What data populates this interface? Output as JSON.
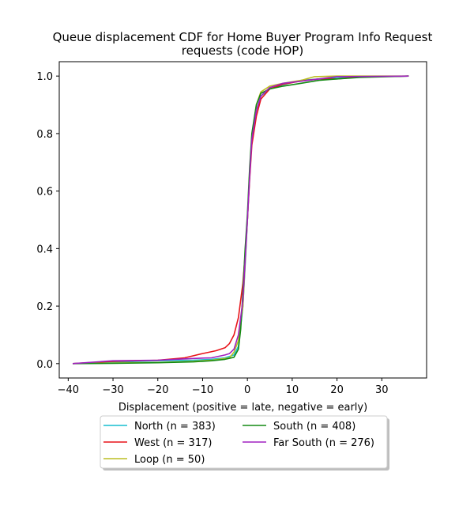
{
  "chart_data": {
    "type": "line",
    "title_lines": [
      "Queue displacement CDF for Home Buyer Program Info Request",
      "requests (code HOP)"
    ],
    "xlabel": "Displacement (positive = late, negative = early)",
    "ylabel": "",
    "xlim": [
      -42,
      40
    ],
    "ylim": [
      -0.05,
      1.05
    ],
    "xticks": [
      -40,
      -30,
      -20,
      -10,
      0,
      10,
      20,
      30
    ],
    "xtick_labels": [
      "−40",
      "−30",
      "−20",
      "−10",
      "0",
      "10",
      "20",
      "30"
    ],
    "yticks": [
      0.0,
      0.2,
      0.4,
      0.6,
      0.8,
      1.0
    ],
    "ytick_labels": [
      "0.0",
      "0.2",
      "0.4",
      "0.6",
      "0.8",
      "1.0"
    ],
    "grid": false,
    "legend": {
      "placement": "below plot, center, 2 columns, shadowed",
      "entries": [
        "North (n = 383)",
        "West (n = 317)",
        "Loop (n = 50)",
        "South (n = 408)",
        "Far South (n = 276)"
      ]
    },
    "series": [
      {
        "name": "North (n = 383)",
        "color": "#17becf",
        "points": [
          [
            -39,
            0.0
          ],
          [
            -30,
            0.005
          ],
          [
            -20,
            0.01
          ],
          [
            -12,
            0.012
          ],
          [
            -8,
            0.015
          ],
          [
            -5,
            0.02
          ],
          [
            -3,
            0.03
          ],
          [
            -2,
            0.06
          ],
          [
            -1,
            0.2
          ],
          [
            -0.5,
            0.34
          ],
          [
            0,
            0.5
          ],
          [
            0.5,
            0.66
          ],
          [
            1,
            0.78
          ],
          [
            2,
            0.88
          ],
          [
            3,
            0.93
          ],
          [
            5,
            0.955
          ],
          [
            8,
            0.97
          ],
          [
            12,
            0.985
          ],
          [
            16,
            0.99
          ],
          [
            20,
            0.995
          ],
          [
            25,
            0.998
          ],
          [
            36,
            1.0
          ]
        ]
      },
      {
        "name": "West (n = 317)",
        "color": "#e8141a",
        "points": [
          [
            -39,
            0.0
          ],
          [
            -30,
            0.008
          ],
          [
            -20,
            0.012
          ],
          [
            -14,
            0.02
          ],
          [
            -10,
            0.035
          ],
          [
            -7,
            0.045
          ],
          [
            -5,
            0.055
          ],
          [
            -4,
            0.07
          ],
          [
            -3,
            0.1
          ],
          [
            -2,
            0.16
          ],
          [
            -1,
            0.28
          ],
          [
            -0.5,
            0.38
          ],
          [
            0,
            0.5
          ],
          [
            0.5,
            0.64
          ],
          [
            1,
            0.76
          ],
          [
            2,
            0.86
          ],
          [
            3,
            0.92
          ],
          [
            5,
            0.955
          ],
          [
            8,
            0.972
          ],
          [
            12,
            0.983
          ],
          [
            16,
            0.99
          ],
          [
            20,
            0.99
          ],
          [
            25,
            0.997
          ],
          [
            36,
            1.0
          ]
        ]
      },
      {
        "name": "Loop (n = 50)",
        "color": "#bcbd22",
        "points": [
          [
            -39,
            0.0
          ],
          [
            -30,
            0.002
          ],
          [
            -20,
            0.004
          ],
          [
            -12,
            0.008
          ],
          [
            -8,
            0.012
          ],
          [
            -5,
            0.018
          ],
          [
            -4,
            0.02
          ],
          [
            -3,
            0.04
          ],
          [
            -2,
            0.08
          ],
          [
            -1,
            0.2
          ],
          [
            -0.5,
            0.35
          ],
          [
            0,
            0.5
          ],
          [
            0.5,
            0.66
          ],
          [
            1,
            0.79
          ],
          [
            2,
            0.9
          ],
          [
            3,
            0.945
          ],
          [
            5,
            0.965
          ],
          [
            8,
            0.975
          ],
          [
            12,
            0.985
          ],
          [
            15,
            0.998
          ],
          [
            20,
            1.0
          ],
          [
            36,
            1.0
          ]
        ]
      },
      {
        "name": "South (n = 408)",
        "color": "#138a13",
        "points": [
          [
            -39,
            0.0
          ],
          [
            -30,
            0.001
          ],
          [
            -20,
            0.003
          ],
          [
            -12,
            0.006
          ],
          [
            -8,
            0.01
          ],
          [
            -5,
            0.015
          ],
          [
            -3,
            0.022
          ],
          [
            -2,
            0.05
          ],
          [
            -1.5,
            0.12
          ],
          [
            -1,
            0.25
          ],
          [
            -0.5,
            0.4
          ],
          [
            0,
            0.52
          ],
          [
            0.5,
            0.68
          ],
          [
            1,
            0.8
          ],
          [
            2,
            0.9
          ],
          [
            3,
            0.94
          ],
          [
            5,
            0.955
          ],
          [
            8,
            0.965
          ],
          [
            12,
            0.975
          ],
          [
            16,
            0.985
          ],
          [
            20,
            0.99
          ],
          [
            25,
            0.995
          ],
          [
            36,
            1.0
          ]
        ]
      },
      {
        "name": "Far South (n = 276)",
        "color": "#a020c0",
        "points": [
          [
            -39,
            0.0
          ],
          [
            -30,
            0.01
          ],
          [
            -20,
            0.012
          ],
          [
            -12,
            0.018
          ],
          [
            -8,
            0.02
          ],
          [
            -5,
            0.03
          ],
          [
            -4,
            0.035
          ],
          [
            -3,
            0.05
          ],
          [
            -2,
            0.1
          ],
          [
            -1,
            0.22
          ],
          [
            -0.5,
            0.36
          ],
          [
            0,
            0.5
          ],
          [
            0.5,
            0.65
          ],
          [
            1,
            0.78
          ],
          [
            2,
            0.88
          ],
          [
            3,
            0.93
          ],
          [
            5,
            0.96
          ],
          [
            8,
            0.975
          ],
          [
            12,
            0.982
          ],
          [
            16,
            0.99
          ],
          [
            20,
            0.998
          ],
          [
            36,
            1.0
          ]
        ]
      }
    ]
  }
}
